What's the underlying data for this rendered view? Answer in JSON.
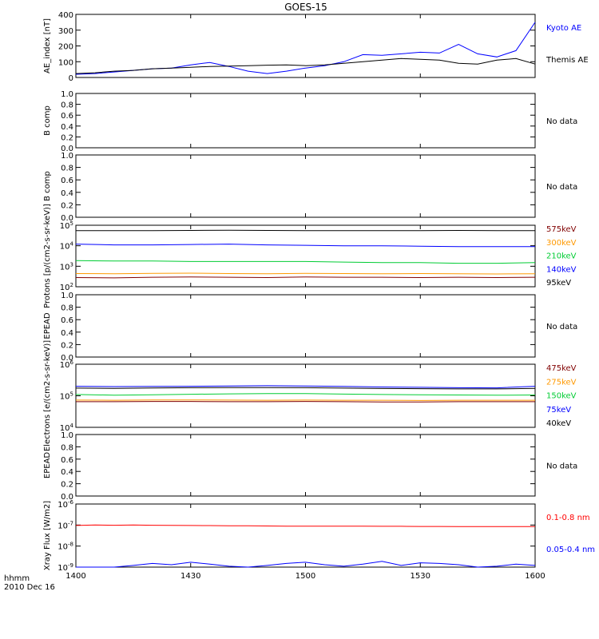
{
  "title": "GOES-15",
  "x_axis": {
    "tick_labels": [
      "1400",
      "1430",
      "1500",
      "1530",
      "1600"
    ],
    "corner_label_1": "hhmm",
    "corner_label_2": "2010 Dec 16"
  },
  "chart_data": [
    {
      "type": "line",
      "ylabel": "AE_index [nT]",
      "ylim": [
        0,
        400
      ],
      "y_ticks": [
        "0",
        "100",
        "200",
        "300",
        "400"
      ],
      "x": [
        0,
        5,
        10,
        15,
        20,
        25,
        30,
        35,
        40,
        45,
        50,
        55,
        60,
        65,
        70,
        75,
        80,
        85,
        90,
        95,
        100,
        105,
        110,
        115,
        120
      ],
      "series": [
        {
          "name": "Kyoto AE",
          "color": "#0000ff",
          "values": [
            20,
            25,
            35,
            45,
            55,
            60,
            80,
            95,
            70,
            40,
            25,
            40,
            60,
            75,
            100,
            145,
            140,
            150,
            160,
            155,
            210,
            150,
            130,
            170,
            350
          ]
        },
        {
          "name": "Themis AE",
          "color": "#000000",
          "values": [
            25,
            30,
            40,
            45,
            55,
            60,
            65,
            70,
            72,
            75,
            78,
            80,
            75,
            80,
            90,
            100,
            110,
            120,
            115,
            110,
            90,
            85,
            110,
            120,
            85
          ]
        }
      ]
    },
    {
      "type": "line",
      "ylabel": "B comp",
      "ylim": [
        0,
        1
      ],
      "y_ticks": [
        "0.0",
        "0.2",
        "0.4",
        "0.6",
        "0.8",
        "1.0"
      ],
      "series": [],
      "status": "No data"
    },
    {
      "type": "line",
      "ylabel": "B comp",
      "ylim": [
        0,
        1
      ],
      "y_ticks": [
        "0.0",
        "0.2",
        "0.4",
        "0.6",
        "0.8",
        "1.0"
      ],
      "series": [],
      "status": "No data"
    },
    {
      "type": "line",
      "log_scale": true,
      "ylabel": "Protons [p/(cm2-s-sr-keV)]",
      "ylim": [
        100,
        100000
      ],
      "y_ticks": [
        "10^2",
        "10^3",
        "10^4",
        "10^5"
      ],
      "x": [
        0,
        10,
        20,
        30,
        40,
        50,
        60,
        70,
        80,
        90,
        100,
        110,
        120
      ],
      "series": [
        {
          "name": "575keV",
          "color": "#800000",
          "values": [
            280,
            270,
            290,
            300,
            290,
            280,
            300,
            290,
            290,
            280,
            290,
            280,
            290
          ]
        },
        {
          "name": "300keV",
          "color": "#ff9900",
          "values": [
            440,
            430,
            450,
            460,
            440,
            430,
            450,
            440,
            430,
            440,
            430,
            420,
            430
          ]
        },
        {
          "name": "210keV",
          "color": "#00cc33",
          "values": [
            1900,
            1800,
            1800,
            1700,
            1700,
            1700,
            1700,
            1600,
            1500,
            1500,
            1400,
            1400,
            1500
          ]
        },
        {
          "name": "140keV",
          "color": "#0000ff",
          "values": [
            12000,
            11000,
            11000,
            11500,
            12000,
            11000,
            10500,
            10000,
            10000,
            9500,
            9000,
            9000,
            9000
          ]
        },
        {
          "name": "95keV",
          "color": "#000000",
          "values": [
            55000,
            55000,
            55000,
            56000,
            57000,
            56000,
            55000,
            55000,
            55000,
            55000,
            56000,
            55000,
            55000
          ]
        }
      ]
    },
    {
      "type": "line",
      "ylabel": "EPEAD",
      "ylim": [
        0,
        1
      ],
      "y_ticks": [
        "0.0",
        "0.2",
        "0.4",
        "0.6",
        "0.8",
        "1.0"
      ],
      "series": [],
      "status": "No data"
    },
    {
      "type": "line",
      "log_scale": true,
      "ylabel": "Electrons [e/(cm2-s-sr-keV)]",
      "ylim": [
        10000,
        1000000
      ],
      "y_ticks": [
        "10^4",
        "10^5",
        "10^6"
      ],
      "x": [
        0,
        10,
        20,
        30,
        40,
        50,
        60,
        70,
        80,
        90,
        100,
        110,
        120
      ],
      "series": [
        {
          "name": "475keV",
          "color": "#800000",
          "values": [
            65000,
            65000,
            66000,
            66000,
            65000,
            65000,
            66000,
            65000,
            64000,
            64000,
            65000,
            65000,
            65000
          ]
        },
        {
          "name": "275keV",
          "color": "#ff9900",
          "values": [
            73000,
            72000,
            74000,
            74000,
            73000,
            72000,
            73000,
            72000,
            72000,
            71000,
            72000,
            72000,
            72000
          ]
        },
        {
          "name": "150keV",
          "color": "#00cc33",
          "values": [
            110000,
            105000,
            108000,
            112000,
            115000,
            118000,
            118000,
            113000,
            110000,
            108000,
            106000,
            104000,
            106000
          ]
        },
        {
          "name": "75keV",
          "color": "#0000ff",
          "values": [
            200000,
            195000,
            198000,
            200000,
            205000,
            208000,
            205000,
            198000,
            190000,
            185000,
            180000,
            178000,
            200000
          ]
        },
        {
          "name": "40keV",
          "color": "#000000",
          "values": [
            175000,
            172000,
            176000,
            180000,
            182000,
            182000,
            180000,
            175000,
            170000,
            168000,
            165000,
            165000,
            172000
          ]
        }
      ]
    },
    {
      "type": "line",
      "ylabel": "EPEAD",
      "ylim": [
        0,
        1
      ],
      "y_ticks": [
        "0.0",
        "0.2",
        "0.4",
        "0.6",
        "0.8",
        "1.0"
      ],
      "series": [],
      "status": "No data"
    },
    {
      "type": "line",
      "log_scale": true,
      "ylabel": "Xray Flux [W/m2]",
      "ylim": [
        1e-09,
        1e-06
      ],
      "y_ticks": [
        "10^-9",
        "10^-8",
        "10^-7",
        "10^-6"
      ],
      "x": [
        0,
        5,
        10,
        15,
        20,
        25,
        30,
        35,
        40,
        45,
        50,
        55,
        60,
        65,
        70,
        75,
        80,
        85,
        90,
        95,
        100,
        105,
        110,
        115,
        120
      ],
      "series": [
        {
          "name": "0.1-0.8 nm",
          "color": "#ff0000",
          "values": [
            9.5e-08,
            1e-07,
            9.8e-08,
            1e-07,
            9.8e-08,
            9.6e-08,
            9.5e-08,
            9.4e-08,
            9.3e-08,
            9.2e-08,
            9e-08,
            8.9e-08,
            8.9e-08,
            8.8e-08,
            8.8e-08,
            8.8e-08,
            8.7e-08,
            8.7e-08,
            8.6e-08,
            8.6e-08,
            8.5e-08,
            8.5e-08,
            8.5e-08,
            8.4e-08,
            8.4e-08
          ]
        },
        {
          "name": "0.05-0.4 nm",
          "color": "#0000ff",
          "values": [
            1e-09,
            1e-09,
            1e-09,
            1.2e-09,
            1.5e-09,
            1.3e-09,
            1.7e-09,
            1.4e-09,
            1.1e-09,
            1e-09,
            1.2e-09,
            1.5e-09,
            1.7e-09,
            1.3e-09,
            1.1e-09,
            1.4e-09,
            1.9e-09,
            1.2e-09,
            1.6e-09,
            1.5e-09,
            1.3e-09,
            1e-09,
            1.1e-09,
            1.4e-09,
            1.2e-09
          ]
        }
      ]
    }
  ]
}
